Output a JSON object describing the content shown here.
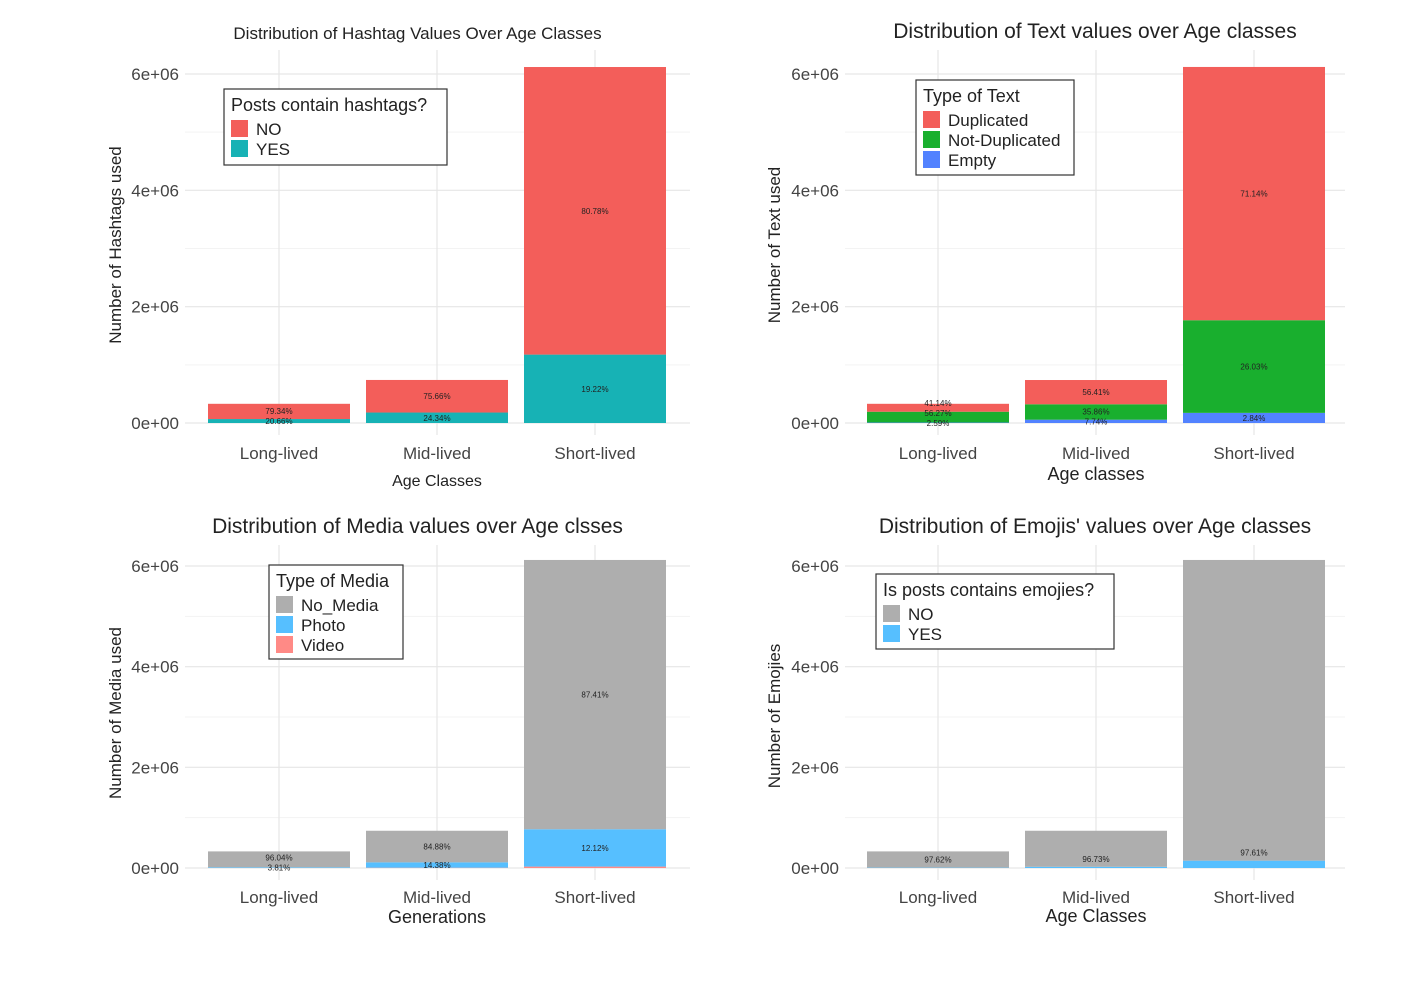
{
  "chart_data": [
    {
      "type": "bar",
      "stacked": true,
      "title": "Distribution of Hashtag Values Over Age Classes",
      "xlabel": "Age Classes",
      "ylabel": "Number of Hashtags used",
      "ylim": [
        0,
        6000000
      ],
      "yticks": [
        "0e+00",
        "2e+06",
        "4e+06",
        "6e+06"
      ],
      "yticks_values": [
        0,
        2000000,
        4000000,
        6000000
      ],
      "grid": true,
      "categories": [
        "Long-lived",
        "Mid-lived",
        "Short-lived"
      ],
      "legend": {
        "title": "Posts contain hashtags?",
        "placement": "top-left"
      },
      "series": [
        {
          "name": "NO",
          "color": "#F35E5A",
          "values": [
            262000,
            560000,
            4944000
          ],
          "labels": [
            "79.34%",
            "75.66%",
            "80.78%"
          ]
        },
        {
          "name": "YES",
          "color": "#17B2B5",
          "values": [
            68000,
            180000,
            1176000
          ],
          "labels": [
            "20.66%",
            "24.34%",
            "19.22%"
          ]
        }
      ]
    },
    {
      "type": "bar",
      "stacked": true,
      "title": "Distribution of Text values over Age classes",
      "xlabel": "Age classes",
      "ylabel": "Number of Text used",
      "ylim": [
        0,
        6000000
      ],
      "yticks": [
        "0e+00",
        "2e+06",
        "4e+06",
        "6e+06"
      ],
      "yticks_values": [
        0,
        2000000,
        4000000,
        6000000
      ],
      "grid": true,
      "categories": [
        "Long-lived",
        "Mid-lived",
        "Short-lived"
      ],
      "legend": {
        "title": "Type of Text",
        "placement": "top-left"
      },
      "series": [
        {
          "name": "Duplicated",
          "color": "#F35E5A",
          "values": [
            136000,
            417000,
            4354000
          ],
          "labels": [
            "41.14%",
            "56.41%",
            "71.14%"
          ]
        },
        {
          "name": "Not-Duplicated",
          "color": "#19AF2E",
          "values": [
            186000,
            265000,
            1593000
          ],
          "labels": [
            "56.27%",
            "35.86%",
            "26.03%"
          ]
        },
        {
          "name": "Empty",
          "color": "#5282FF",
          "values": [
            8000,
            57000,
            174000
          ],
          "labels": [
            "2.59%",
            "7.74%",
            "2.84%"
          ]
        }
      ]
    },
    {
      "type": "bar",
      "stacked": true,
      "title": "Distribution of Media values over Age clsses",
      "xlabel": "Generations",
      "ylabel": "Number of Media used",
      "ylim": [
        0,
        6000000
      ],
      "yticks": [
        "0e+00",
        "2e+06",
        "4e+06",
        "6e+06"
      ],
      "yticks_values": [
        0,
        2000000,
        4000000,
        6000000
      ],
      "grid": true,
      "categories": [
        "Long-lived",
        "Mid-lived",
        "Short-lived"
      ],
      "legend": {
        "title": "Type of Media",
        "placement": "top-left"
      },
      "series": [
        {
          "name": "No_Media",
          "color": "#AEAEAE",
          "values": [
            316900,
            628000,
            5350000
          ],
          "labels": [
            "96.04%",
            "84.88%",
            "87.41%"
          ]
        },
        {
          "name": "Photo",
          "color": "#56BFFF",
          "values": [
            12600,
            106000,
            742000
          ],
          "labels": [
            "3.81%",
            "14.38%",
            "12.12%"
          ]
        },
        {
          "name": "Video",
          "color": "#FF8A86",
          "values": [
            500,
            6000,
            28000
          ],
          "labels": [
            "",
            "",
            ""
          ]
        }
      ]
    },
    {
      "type": "bar",
      "stacked": true,
      "title": "Distribution of Emojis' values over Age classes",
      "xlabel": "Age Classes",
      "ylabel": "Number of Emojies",
      "ylim": [
        0,
        6000000
      ],
      "yticks": [
        "0e+00",
        "2e+06",
        "4e+06",
        "6e+06"
      ],
      "yticks_values": [
        0,
        2000000,
        4000000,
        6000000
      ],
      "grid": true,
      "categories": [
        "Long-lived",
        "Mid-lived",
        "Short-lived"
      ],
      "legend": {
        "title": "Is posts contains emojies?",
        "placement": "top-left"
      },
      "series": [
        {
          "name": "NO",
          "color": "#AEAEAE",
          "values": [
            322000,
            716000,
            5974000
          ],
          "labels": [
            "97.62%",
            "96.73%",
            "97.61%"
          ]
        },
        {
          "name": "YES",
          "color": "#56BFFF",
          "values": [
            8000,
            24000,
            146000
          ],
          "labels": [
            "",
            "",
            ""
          ]
        }
      ]
    }
  ]
}
